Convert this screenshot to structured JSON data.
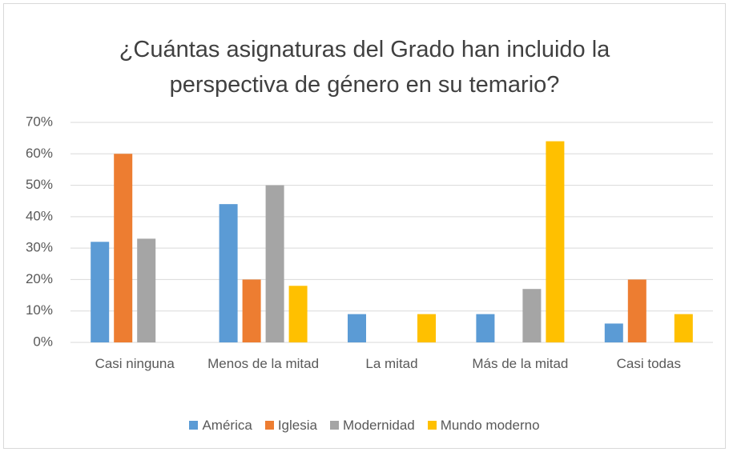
{
  "chart_data": {
    "type": "bar",
    "title": "¿Cuántas asignaturas del Grado han incluido la perspectiva de género en su temario?",
    "categories": [
      "Casi ninguna",
      "Menos de la mitad",
      "La mitad",
      "Más de la mitad",
      "Casi todas"
    ],
    "series": [
      {
        "name": "América",
        "color": "#5b9bd5",
        "values": [
          32,
          44,
          9,
          9,
          6
        ]
      },
      {
        "name": "Iglesia",
        "color": "#ed7d31",
        "values": [
          60,
          20,
          0,
          0,
          20
        ]
      },
      {
        "name": "Modernidad",
        "color": "#a5a5a5",
        "values": [
          33,
          50,
          0,
          17,
          0
        ]
      },
      {
        "name": "Mundo moderno",
        "color": "#ffc000",
        "values": [
          0,
          18,
          9,
          64,
          9
        ]
      }
    ],
    "ylim": [
      0,
      70
    ],
    "yticks": [
      {
        "value": 0,
        "label": "0%"
      },
      {
        "value": 10,
        "label": "10%"
      },
      {
        "value": 20,
        "label": "20%"
      },
      {
        "value": 30,
        "label": "30%"
      },
      {
        "value": 40,
        "label": "40%"
      },
      {
        "value": 50,
        "label": "50%"
      },
      {
        "value": 60,
        "label": "60%"
      },
      {
        "value": 70,
        "label": "70%"
      }
    ],
    "grid": true,
    "legend": "bottom"
  }
}
